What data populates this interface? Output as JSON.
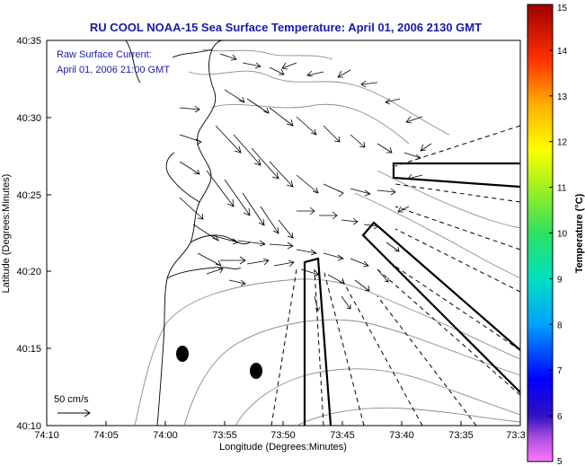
{
  "title": "RU COOL  NOAA-15  Sea Surface Temperature:  April 01, 2006 2130 GMT",
  "annotation": {
    "line1": "Raw Surface Current:",
    "line2": "April 01, 2006 21:00 GMT"
  },
  "axes": {
    "xlabel": "Longitude (Degrees:Minutes)",
    "ylabel": "Latitude (Degrees:Minutes)",
    "x_ticks": [
      "74:10",
      "74:05",
      "74:00",
      "73:55",
      "73:50",
      "73:45",
      "73:40",
      "73:35",
      "73:3"
    ],
    "y_ticks": [
      "40:10",
      "40:15",
      "40:20",
      "40:25",
      "40:30",
      "40:35"
    ]
  },
  "scale_label": "50 cm/s",
  "colorbar": {
    "label": "Temperature (°C)",
    "ticks": [
      "5",
      "6",
      "7",
      "8",
      "9",
      "10",
      "11",
      "12",
      "13",
      "14",
      "15"
    ],
    "min": 5,
    "max": 15
  },
  "colors": {
    "title": "#1a1aa8",
    "land_outline": "#000000",
    "bathymetry": "#8c8c8c",
    "arrows": "#000000"
  }
}
